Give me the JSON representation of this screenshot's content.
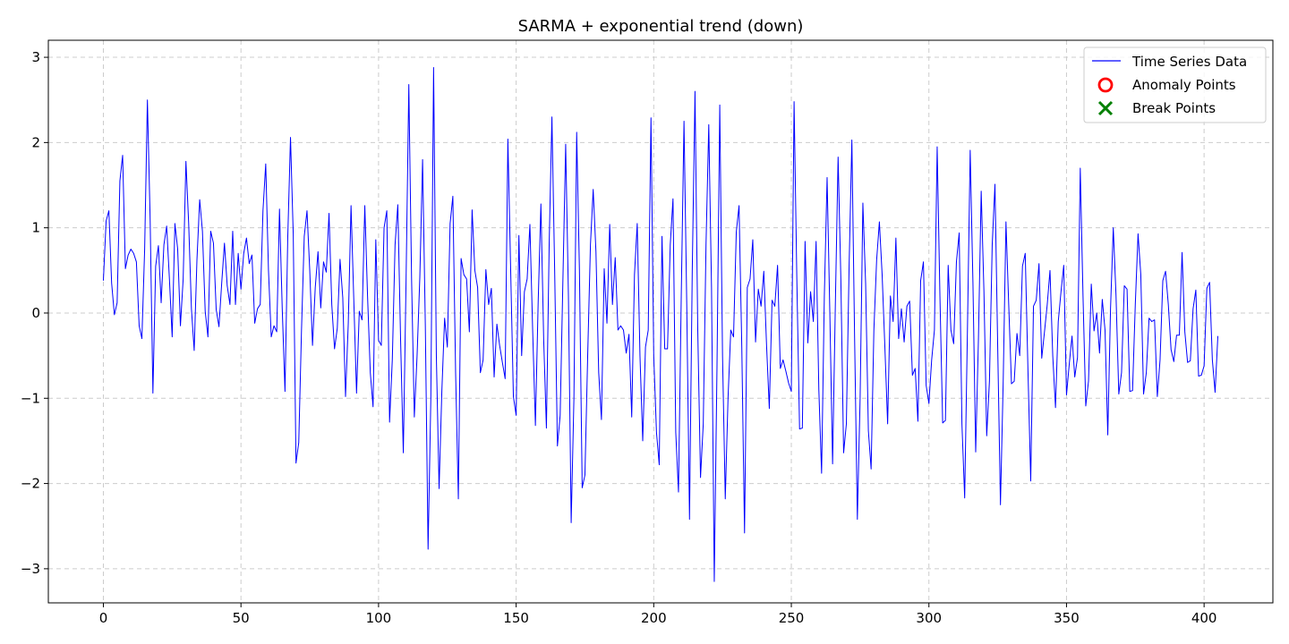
{
  "chart_data": {
    "type": "line",
    "title": "SARMA + exponential trend (down)",
    "xlabel": "",
    "ylabel": "",
    "xlim": [
      -20,
      425
    ],
    "ylim": [
      -3.4,
      3.2
    ],
    "x_ticks": [
      0,
      50,
      100,
      150,
      200,
      250,
      300,
      350,
      400
    ],
    "y_ticks": [
      -3,
      -2,
      -1,
      0,
      1,
      2,
      3
    ],
    "y_tick_labels": [
      "−3",
      "−2",
      "−1",
      "0",
      "1",
      "2",
      "3"
    ],
    "grid": true,
    "legend_position": "top-right",
    "legend": [
      {
        "label": "Time Series Data",
        "marker": "line",
        "color": "#0000ff"
      },
      {
        "label": "Anomaly Points",
        "marker": "circle",
        "color": "#ff0000"
      },
      {
        "label": "Break Points",
        "marker": "x",
        "color": "#008000"
      }
    ],
    "series": [
      {
        "name": "Time Series Data",
        "color": "#0000ff",
        "x_start": 0,
        "values": [
          0.38,
          1.08,
          1.2,
          0.35,
          -0.02,
          0.12,
          1.55,
          1.85,
          0.52,
          0.68,
          0.75,
          0.7,
          0.6,
          -0.15,
          -0.3,
          0.75,
          2.5,
          1.1,
          -0.94,
          0.55,
          0.79,
          0.12,
          0.8,
          1.02,
          0.4,
          -0.28,
          1.05,
          0.75,
          -0.15,
          0.4,
          1.78,
          1.05,
          0.05,
          -0.44,
          0.62,
          1.33,
          0.96,
          0.02,
          -0.28,
          0.96,
          0.82,
          0.04,
          -0.16,
          0.35,
          0.82,
          0.32,
          0.1,
          0.96,
          0.1,
          0.7,
          0.28,
          0.7,
          0.88,
          0.58,
          0.68,
          -0.12,
          0.05,
          0.1,
          1.2,
          1.75,
          0.5,
          -0.28,
          -0.15,
          -0.22,
          1.22,
          0.05,
          -0.92,
          0.88,
          2.06,
          0.92,
          -1.76,
          -1.52,
          -0.2,
          0.9,
          1.2,
          0.5,
          -0.38,
          0.3,
          0.72,
          0.06,
          0.6,
          0.48,
          1.17,
          0.1,
          -0.42,
          -0.18,
          0.63,
          0.18,
          -0.98,
          -0.12,
          1.26,
          0.16,
          -0.94,
          0.02,
          -0.08,
          1.26,
          0.2,
          -0.7,
          -1.1,
          0.86,
          -0.32,
          -0.38,
          1.0,
          1.2,
          -1.28,
          -0.55,
          0.8,
          1.27,
          -0.3,
          -1.64,
          0.38,
          2.68,
          0.4,
          -1.22,
          -0.5,
          0.42,
          1.8,
          -0.15,
          -2.77,
          -1.0,
          2.88,
          -0.5,
          -2.06,
          -0.92,
          -0.06,
          -0.4,
          1.05,
          1.37,
          -0.7,
          -2.18,
          0.64,
          0.45,
          0.4,
          -0.22,
          1.21,
          0.5,
          0.3,
          -0.7,
          -0.55,
          0.51,
          0.1,
          0.29,
          -0.75,
          -0.13,
          -0.38,
          -0.58,
          -0.77,
          2.04,
          0.52,
          -0.98,
          -1.2,
          0.91,
          -0.5,
          0.25,
          0.4,
          1.04,
          -0.2,
          -1.32,
          0.12,
          1.28,
          -0.3,
          -1.35,
          0.8,
          2.3,
          0.5,
          -1.56,
          -1.2,
          0.4,
          1.98,
          0.2,
          -2.46,
          -1.0,
          2.12,
          0.5,
          -2.05,
          -1.9,
          -0.5,
          0.8,
          1.45,
          0.72,
          -0.7,
          -1.25,
          0.52,
          -0.12,
          1.04,
          0.1,
          0.65,
          -0.2,
          -0.15,
          -0.2,
          -0.47,
          -0.25,
          -1.22,
          0.45,
          1.05,
          -0.5,
          -1.5,
          -0.4,
          -0.2,
          2.29,
          -0.5,
          -1.4,
          -1.78,
          0.9,
          -0.42,
          -0.42,
          0.8,
          1.34,
          -1.4,
          -2.1,
          0.2,
          2.25,
          0.1,
          -2.42,
          0.5,
          2.6,
          -0.2,
          -1.93,
          -1.3,
          0.8,
          2.21,
          0.3,
          -3.15,
          -0.6,
          2.44,
          -0.5,
          -2.18,
          -1.0,
          -0.2,
          -0.28,
          0.95,
          1.26,
          -0.4,
          -2.58,
          0.3,
          0.4,
          0.86,
          -0.34,
          0.28,
          0.08,
          0.49,
          -0.38,
          -1.12,
          0.15,
          0.08,
          0.56,
          -0.65,
          -0.55,
          -0.68,
          -0.82,
          -0.92,
          2.48,
          0.4,
          -1.36,
          -1.35,
          0.84,
          -0.35,
          0.25,
          -0.1,
          0.84,
          -0.9,
          -1.88,
          0.2,
          1.59,
          0.0,
          -1.77,
          0.1,
          1.83,
          0.4,
          -1.64,
          -1.3,
          0.55,
          2.03,
          -0.3,
          -2.42,
          -1.0,
          1.29,
          0.35,
          -1.38,
          -1.83,
          -0.2,
          0.62,
          1.07,
          0.45,
          -0.4,
          -1.3,
          0.2,
          -0.1,
          0.88,
          -0.3,
          0.05,
          -0.34,
          0.08,
          0.14,
          -0.73,
          -0.65,
          -1.27,
          0.38,
          0.6,
          -0.85,
          -1.06,
          -0.55,
          -0.2,
          1.95,
          0.2,
          -1.29,
          -1.26,
          0.56,
          -0.2,
          -0.36,
          0.6,
          0.94,
          -1.3,
          -2.17,
          -0.2,
          1.91,
          0.35,
          -1.63,
          -0.3,
          1.43,
          0.25,
          -1.44,
          -0.8,
          0.8,
          1.51,
          -0.4,
          -2.25,
          -0.8,
          1.07,
          0.1,
          -0.83,
          -0.8,
          -0.24,
          -0.5,
          0.55,
          0.7,
          -0.68,
          -1.97,
          0.08,
          0.15,
          0.58,
          -0.53,
          -0.22,
          0.1,
          0.5,
          -0.5,
          -1.11,
          -0.1,
          0.25,
          0.56,
          -0.96,
          -0.6,
          -0.27,
          -0.75,
          -0.52,
          1.7,
          0.2,
          -1.09,
          -0.8,
          0.34,
          -0.21,
          0.0,
          -0.47,
          0.16,
          -0.2,
          -1.43,
          0.05,
          1.0,
          0.2,
          -0.95,
          -0.7,
          0.32,
          0.28,
          -0.92,
          -0.91,
          0.1,
          0.93,
          0.45,
          -0.95,
          -0.7,
          -0.06,
          -0.1,
          -0.08,
          -0.98,
          -0.55,
          0.38,
          0.49,
          0.1,
          -0.43,
          -0.57,
          -0.26,
          -0.26,
          0.71,
          -0.22,
          -0.58,
          -0.56,
          0.05,
          0.27,
          -0.74,
          -0.73,
          -0.62,
          0.29,
          0.36,
          -0.55,
          -0.93,
          -0.27
        ]
      }
    ],
    "anomaly_points": [],
    "break_points": []
  }
}
